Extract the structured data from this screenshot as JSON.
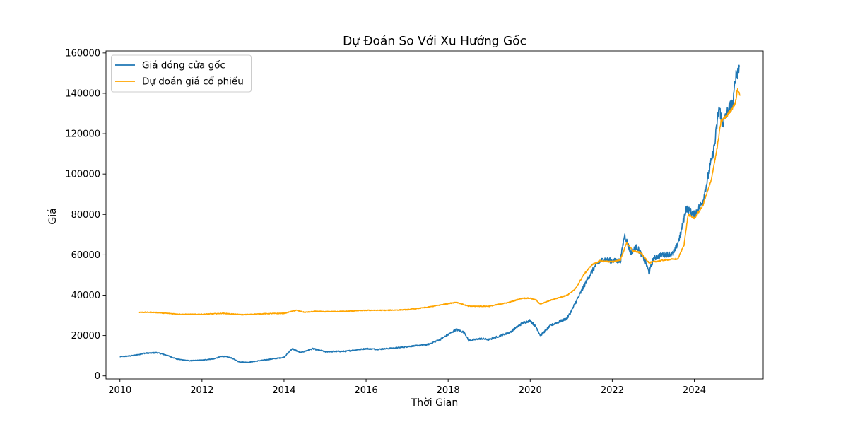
{
  "chart_data": {
    "type": "line",
    "title": "Dự Đoán So Với Xu Hướng Gốc",
    "xlabel": "Thời Gian",
    "ylabel": "Giá",
    "xlim": [
      2009.66,
      2025.68
    ],
    "ylim": [
      -1500,
      161000
    ],
    "x_ticks": [
      2010,
      2012,
      2014,
      2016,
      2018,
      2020,
      2022,
      2024
    ],
    "x_tick_labels": [
      "2010",
      "2012",
      "2014",
      "2016",
      "2018",
      "2020",
      "2022",
      "2024"
    ],
    "y_ticks": [
      0,
      20000,
      40000,
      60000,
      80000,
      100000,
      120000,
      140000,
      160000
    ],
    "y_tick_labels": [
      "0",
      "20000",
      "40000",
      "60000",
      "80000",
      "100000",
      "120000",
      "140000",
      "160000"
    ],
    "grid": false,
    "legend": "top-left",
    "series": [
      {
        "name": "Giá đóng cửa gốc",
        "color": "#1f77b4",
        "points": [
          [
            2010.0,
            9500
          ],
          [
            2010.3,
            10000
          ],
          [
            2010.6,
            11200
          ],
          [
            2010.9,
            11500
          ],
          [
            2011.1,
            10500
          ],
          [
            2011.4,
            8300
          ],
          [
            2011.7,
            7500
          ],
          [
            2012.0,
            7800
          ],
          [
            2012.3,
            8500
          ],
          [
            2012.5,
            9800
          ],
          [
            2012.7,
            9000
          ],
          [
            2012.9,
            7000
          ],
          [
            2013.1,
            6700
          ],
          [
            2013.5,
            7800
          ],
          [
            2014.0,
            9200
          ],
          [
            2014.2,
            13500
          ],
          [
            2014.4,
            11500
          ],
          [
            2014.7,
            13500
          ],
          [
            2015.0,
            12000
          ],
          [
            2015.5,
            12200
          ],
          [
            2016.0,
            13500
          ],
          [
            2016.3,
            13200
          ],
          [
            2016.8,
            14000
          ],
          [
            2017.0,
            14500
          ],
          [
            2017.5,
            15500
          ],
          [
            2017.8,
            18000
          ],
          [
            2018.0,
            20500
          ],
          [
            2018.2,
            23000
          ],
          [
            2018.4,
            21500
          ],
          [
            2018.5,
            17500
          ],
          [
            2018.8,
            18500
          ],
          [
            2019.0,
            18000
          ],
          [
            2019.5,
            21500
          ],
          [
            2019.8,
            26000
          ],
          [
            2020.0,
            27500
          ],
          [
            2020.15,
            24000
          ],
          [
            2020.25,
            20000
          ],
          [
            2020.5,
            25000
          ],
          [
            2020.9,
            28500
          ],
          [
            2021.0,
            32000
          ],
          [
            2021.2,
            40000
          ],
          [
            2021.4,
            48000
          ],
          [
            2021.6,
            55000
          ],
          [
            2021.8,
            58000
          ],
          [
            2022.0,
            57000
          ],
          [
            2022.2,
            57000
          ],
          [
            2022.3,
            70000
          ],
          [
            2022.45,
            61000
          ],
          [
            2022.6,
            64000
          ],
          [
            2022.8,
            57000
          ],
          [
            2022.9,
            51000
          ],
          [
            2023.0,
            58000
          ],
          [
            2023.2,
            60000
          ],
          [
            2023.5,
            60500
          ],
          [
            2023.65,
            69000
          ],
          [
            2023.8,
            83000
          ],
          [
            2024.0,
            80000
          ],
          [
            2024.2,
            86000
          ],
          [
            2024.35,
            100000
          ],
          [
            2024.5,
            115000
          ],
          [
            2024.6,
            133000
          ],
          [
            2024.7,
            125000
          ],
          [
            2024.85,
            133000
          ],
          [
            2024.95,
            135000
          ],
          [
            2025.0,
            148000
          ],
          [
            2025.1,
            153000
          ]
        ]
      },
      {
        "name": "Dự đoán giá cổ phiếu",
        "color": "#ffa500",
        "points": [
          [
            2010.45,
            31500
          ],
          [
            2010.8,
            31500
          ],
          [
            2011.5,
            30500
          ],
          [
            2012.0,
            30500
          ],
          [
            2012.5,
            31000
          ],
          [
            2013.0,
            30300
          ],
          [
            2013.5,
            30800
          ],
          [
            2014.0,
            31000
          ],
          [
            2014.3,
            32500
          ],
          [
            2014.5,
            31500
          ],
          [
            2014.8,
            32000
          ],
          [
            2015.0,
            31800
          ],
          [
            2015.5,
            32000
          ],
          [
            2016.0,
            32500
          ],
          [
            2016.5,
            32500
          ],
          [
            2017.0,
            32800
          ],
          [
            2017.5,
            34000
          ],
          [
            2017.9,
            35500
          ],
          [
            2018.2,
            36500
          ],
          [
            2018.5,
            34500
          ],
          [
            2018.8,
            34500
          ],
          [
            2019.0,
            34500
          ],
          [
            2019.5,
            36500
          ],
          [
            2019.8,
            38500
          ],
          [
            2020.0,
            38500
          ],
          [
            2020.15,
            37500
          ],
          [
            2020.25,
            35500
          ],
          [
            2020.5,
            37500
          ],
          [
            2020.9,
            40000
          ],
          [
            2021.1,
            43000
          ],
          [
            2021.3,
            50000
          ],
          [
            2021.5,
            55000
          ],
          [
            2021.7,
            57000
          ],
          [
            2022.0,
            56500
          ],
          [
            2022.2,
            57500
          ],
          [
            2022.35,
            66000
          ],
          [
            2022.5,
            62000
          ],
          [
            2022.7,
            61000
          ],
          [
            2022.9,
            56000
          ],
          [
            2023.0,
            56500
          ],
          [
            2023.3,
            57500
          ],
          [
            2023.6,
            58000
          ],
          [
            2023.75,
            65000
          ],
          [
            2023.85,
            80000
          ],
          [
            2024.0,
            78000
          ],
          [
            2024.2,
            84000
          ],
          [
            2024.4,
            96000
          ],
          [
            2024.55,
            112000
          ],
          [
            2024.65,
            126000
          ],
          [
            2024.8,
            129000
          ],
          [
            2025.0,
            135000
          ],
          [
            2025.05,
            142000
          ],
          [
            2025.12,
            139000
          ]
        ]
      }
    ]
  }
}
